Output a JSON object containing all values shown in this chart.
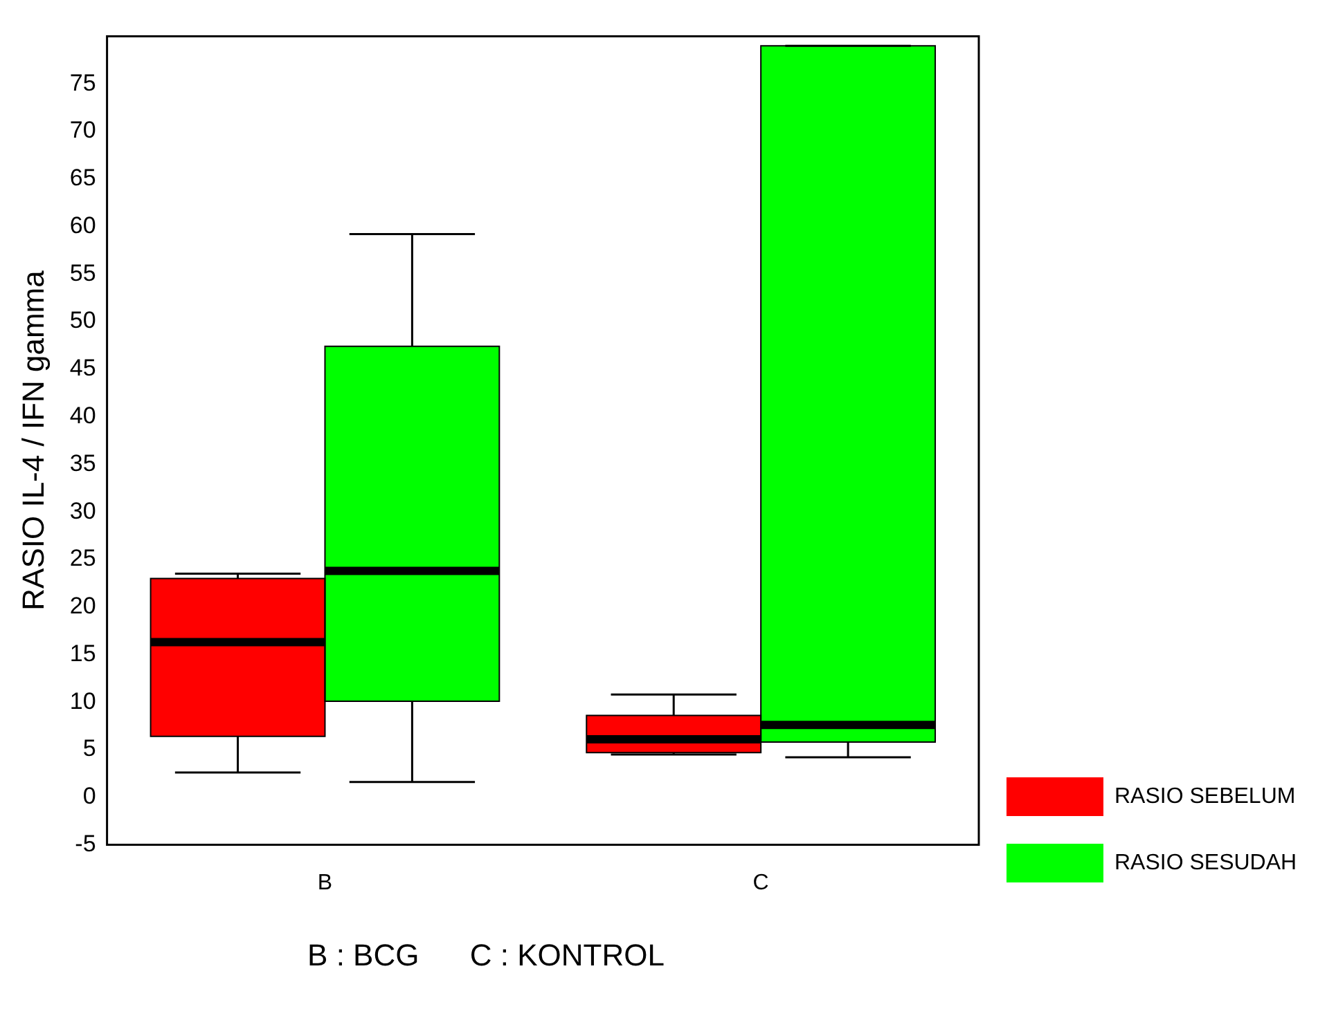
{
  "chart_data": {
    "type": "box",
    "ylabel": "RASIO IL-4 / IFN gamma",
    "categories": [
      "B",
      "C"
    ],
    "ylim": [
      -5,
      80
    ],
    "yticks": [
      -5,
      0,
      5,
      10,
      15,
      20,
      25,
      30,
      35,
      40,
      45,
      50,
      55,
      60,
      65,
      70,
      75
    ],
    "grid": false,
    "legend": "right",
    "series": [
      {
        "name": "RASIO SEBELUM",
        "color": "#ff0000",
        "boxes": [
          {
            "low": 2.6,
            "q1": 6.4,
            "median": 16.3,
            "q3": 23.0,
            "high": 23.5
          },
          {
            "low": 4.5,
            "q1": 4.7,
            "median": 6.1,
            "q3": 8.6,
            "high": 10.8
          }
        ]
      },
      {
        "name": "RASIO SESUDAH",
        "color": "#00ff00",
        "boxes": [
          {
            "low": 1.6,
            "q1": 10.1,
            "median": 23.8,
            "q3": 47.4,
            "high": 59.2
          },
          {
            "low": 4.2,
            "q1": 5.8,
            "median": 7.6,
            "q3": 79,
            "high": 79
          }
        ]
      }
    ],
    "annotations": [
      "B : BCG      C : KONTROL"
    ]
  }
}
